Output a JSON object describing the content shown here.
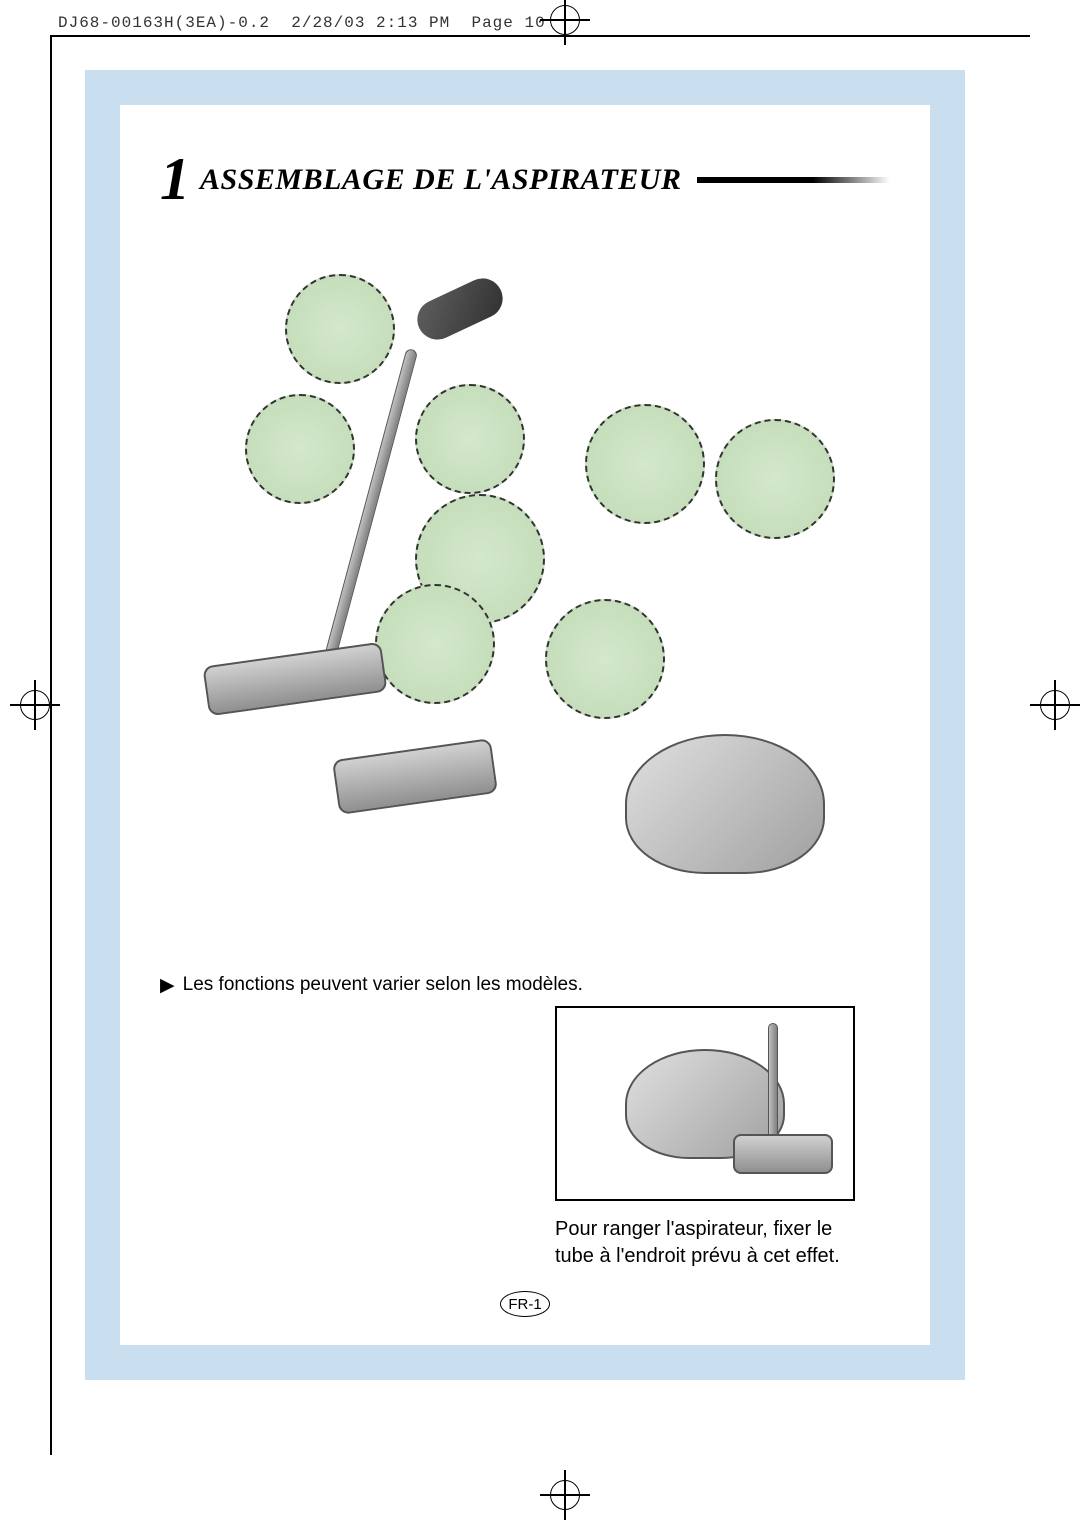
{
  "header": {
    "doc_id": "DJ68-00163H(3EA)-0.2",
    "date": "2/28/03 2:13 PM",
    "page_label": "Page 10"
  },
  "section": {
    "number": "1",
    "title": "ASSEMBLAGE DE L'ASPIRATEUR"
  },
  "note": {
    "arrow": "▶",
    "text": "Les fonctions peuvent varier selon les modèles."
  },
  "storage": {
    "line1": "Pour ranger l'aspirateur, fixer le",
    "line2": "tube à l'endroit prévu à cet effet."
  },
  "page_number": "FR-1",
  "colors": {
    "frame_blue": "#c9dff0",
    "detail_green": "#d4e8cc",
    "text_black": "#000000"
  }
}
